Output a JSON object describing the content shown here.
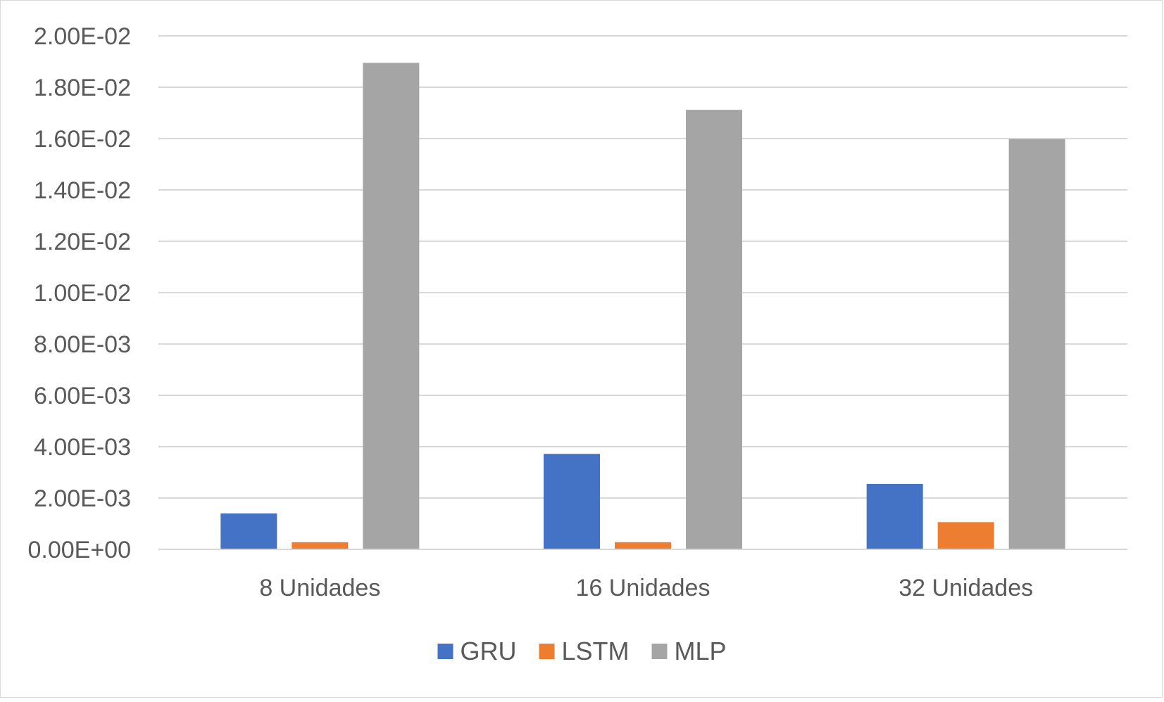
{
  "chart_data": {
    "type": "bar",
    "categories": [
      "8 Unidades",
      "16 Unidades",
      "32 Unidades"
    ],
    "series": [
      {
        "name": "GRU",
        "color": "#4472c4",
        "values": [
          0.0014,
          0.00372,
          0.00255
        ]
      },
      {
        "name": "LSTM",
        "color": "#ed7d31",
        "values": [
          0.00028,
          0.00028,
          0.00106
        ]
      },
      {
        "name": "MLP",
        "color": "#a5a5a5",
        "values": [
          0.01895,
          0.01712,
          0.01598
        ]
      }
    ],
    "y_ticks": [
      "0.00E+00",
      "2.00E-03",
      "4.00E-03",
      "6.00E-03",
      "8.00E-03",
      "1.00E-02",
      "1.20E-02",
      "1.40E-02",
      "1.60E-02",
      "1.80E-02",
      "2.00E-02"
    ],
    "ylim": [
      0,
      0.02
    ],
    "grid": true,
    "legend_position": "bottom",
    "title": "",
    "xlabel": "",
    "ylabel": ""
  }
}
